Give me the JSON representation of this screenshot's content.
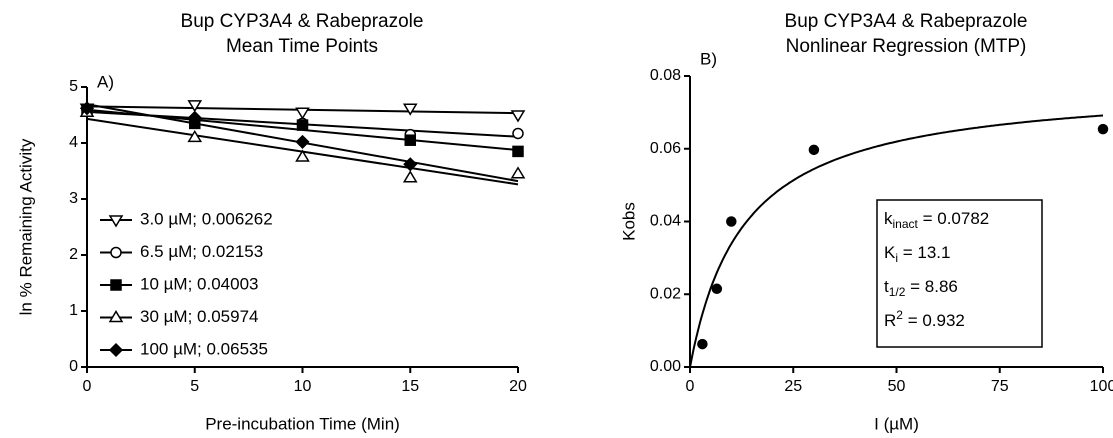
{
  "chart_data": [
    {
      "type": "line",
      "panel_label": "A)",
      "title": [
        "Bup CYP3A4 & Rabeprazole",
        "Mean Time Points"
      ],
      "xlabel": "Pre-incubation Time (Min)",
      "ylabel": "ln % Remaining Activity",
      "x": [
        0,
        5,
        10,
        15,
        20
      ],
      "xlim": [
        0,
        20
      ],
      "xticks": [
        0,
        5,
        10,
        15,
        20
      ],
      "ylim": [
        0,
        5
      ],
      "yticks": [
        0,
        1,
        2,
        3,
        4,
        5
      ],
      "series": [
        {
          "name": "3.0 µM; 0.006262",
          "color": "#000000",
          "marker": "triangle-down",
          "values": [
            4.62,
            4.68,
            4.55,
            4.62,
            4.5
          ]
        },
        {
          "name": "6.5 µM; 0.02153",
          "color": "#000000",
          "marker": "circle",
          "values": [
            4.6,
            4.4,
            4.35,
            4.15,
            4.17
          ]
        },
        {
          "name": "10 µM; 0.04003",
          "color": "#000000",
          "marker": "square",
          "values": [
            4.6,
            4.35,
            4.32,
            4.05,
            3.85
          ]
        },
        {
          "name": "30 µM; 0.05974",
          "color": "#000000",
          "marker": "triangle-up",
          "values": [
            4.55,
            4.1,
            3.75,
            3.38,
            3.45
          ]
        },
        {
          "name": "100 µM; 0.06535",
          "color": "#000000",
          "marker": "diamond",
          "values": [
            4.62,
            4.45,
            4.02,
            3.62,
            null
          ]
        }
      ]
    },
    {
      "type": "scatter",
      "panel_label": "B)",
      "title": [
        "Bup CYP3A4 & Rabeprazole",
        "Nonlinear Regression (MTP)"
      ],
      "xlabel": "I (µM)",
      "ylabel": "Kobs",
      "x": [
        3,
        6.5,
        10,
        30,
        100
      ],
      "values": [
        0.0063,
        0.0215,
        0.04,
        0.0597,
        0.0654
      ],
      "color": "#000000",
      "xlim": [
        0,
        100
      ],
      "xticks": [
        0,
        25,
        50,
        75,
        100
      ],
      "ylim": [
        0,
        0.08
      ],
      "yticks": [
        {
          "value": 0,
          "label": "0.00"
        },
        {
          "value": 0.02,
          "label": "0.02"
        },
        {
          "value": 0.04,
          "label": "0.04"
        },
        {
          "value": 0.06,
          "label": "0.06"
        },
        {
          "value": 0.08,
          "label": "0.08"
        }
      ],
      "fit_params": [
        {
          "symbol": "k",
          "sub": "inact",
          "sep": " = ",
          "value": 0.0782
        },
        {
          "symbol": "K",
          "sub": "i",
          "sep": " = ",
          "value": 13.1
        },
        {
          "symbol": "t",
          "sub": "1/2",
          "sep": " = ",
          "value": 8.86
        },
        {
          "symbol": "R",
          "sup": "2",
          "sep": " = ",
          "value": 0.932
        }
      ]
    }
  ]
}
